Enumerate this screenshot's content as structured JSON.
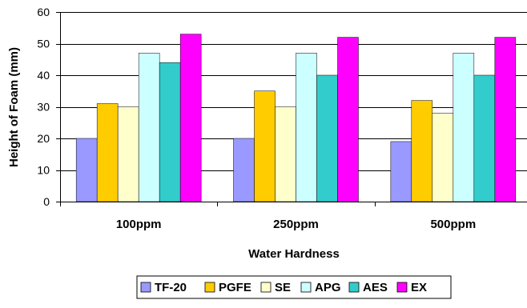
{
  "chart_data": {
    "type": "bar",
    "categories": [
      "100ppm",
      "250ppm",
      "500ppm"
    ],
    "series": [
      {
        "name": "TF-20",
        "color": "#9999FF",
        "values": [
          20,
          20,
          19
        ]
      },
      {
        "name": "PGFE",
        "color": "#FFCC00",
        "values": [
          31,
          35,
          32
        ]
      },
      {
        "name": "SE",
        "color": "#FFFFCC",
        "values": [
          30,
          30,
          28
        ]
      },
      {
        "name": "APG",
        "color": "#CCFFFF",
        "values": [
          47,
          47,
          47
        ]
      },
      {
        "name": "AES",
        "color": "#33CCCC",
        "values": [
          44,
          40,
          40
        ]
      },
      {
        "name": "EX",
        "color": "#FF00FF",
        "values": [
          53,
          52,
          52
        ]
      }
    ],
    "title": "",
    "xlabel": "Water Hardness",
    "ylabel": "Height of Foam (mm)",
    "ylim": [
      0,
      60
    ],
    "yticks": [
      0,
      10,
      20,
      30,
      40,
      50,
      60
    ],
    "grid": true,
    "legend_position": "bottom"
  }
}
